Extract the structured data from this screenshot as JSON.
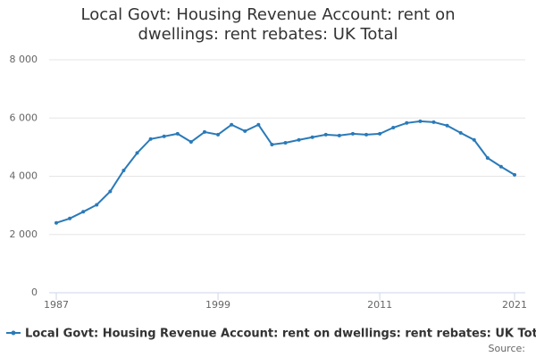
{
  "chart_data": {
    "type": "line",
    "title": "Local Govt: Housing Revenue Account: rent on dwellings: rent rebates: UK Total",
    "x": [
      1987,
      1988,
      1989,
      1990,
      1991,
      1992,
      1993,
      1994,
      1995,
      1996,
      1997,
      1998,
      1999,
      2000,
      2001,
      2002,
      2003,
      2004,
      2005,
      2006,
      2007,
      2008,
      2009,
      2010,
      2011,
      2012,
      2013,
      2014,
      2015,
      2016,
      2017,
      2018,
      2019,
      2020,
      2021
    ],
    "series": [
      {
        "name": "Local Govt: Housing Revenue Account: rent on dwellings: rent rebates: UK Total",
        "color": "#2a7ab8",
        "values": [
          2400,
          2550,
          2780,
          3020,
          3480,
          4200,
          4800,
          5280,
          5370,
          5460,
          5180,
          5520,
          5430,
          5770,
          5550,
          5770,
          5090,
          5150,
          5250,
          5340,
          5430,
          5400,
          5460,
          5430,
          5460,
          5670,
          5830,
          5890,
          5860,
          5740,
          5490,
          5250,
          4630,
          4330,
          4050
        ]
      }
    ],
    "xlim": [
      1987,
      2021
    ],
    "xticks": [
      1987,
      1999,
      2011,
      2021
    ],
    "ylim": [
      0,
      8000
    ],
    "yticks": [
      0,
      {
        "value": 2000,
        "label": "2 000"
      },
      {
        "value": 4000,
        "label": "4 000"
      },
      {
        "value": 6000,
        "label": "6 000"
      },
      {
        "value": 8000,
        "label": "8 000"
      }
    ],
    "grid": true,
    "source": "Source:"
  }
}
